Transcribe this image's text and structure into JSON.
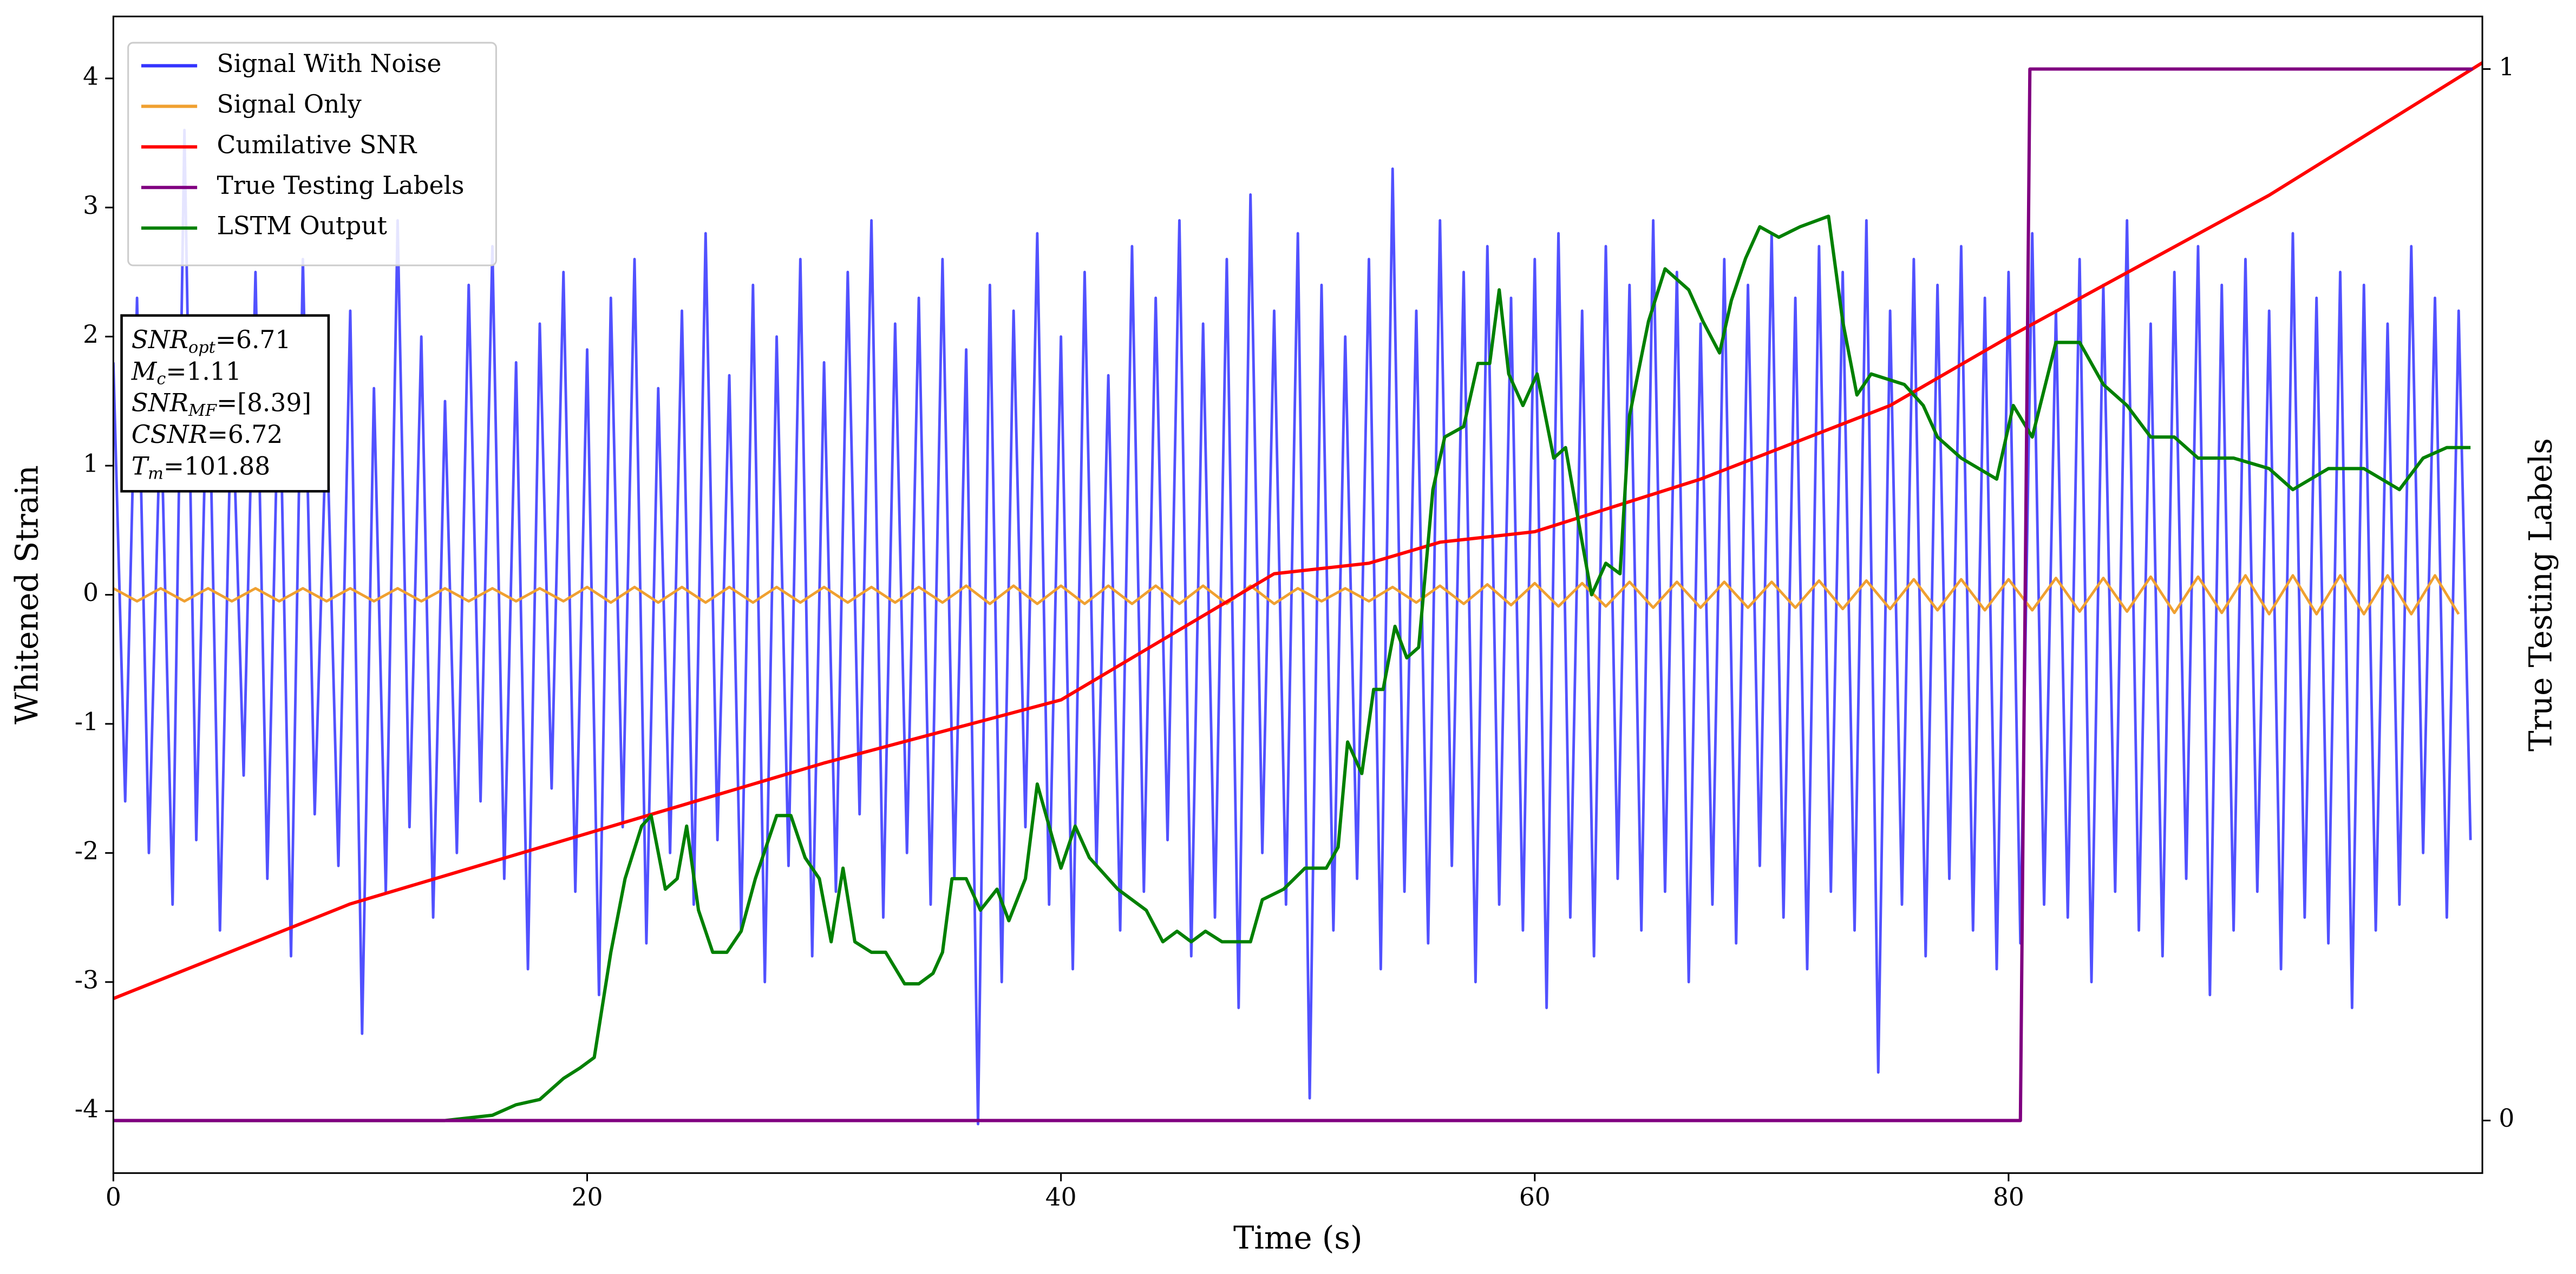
{
  "chart_data": {
    "type": "line",
    "xlabel": "Time (s)",
    "ylabel": "Whitened Strain",
    "y2label": "True Testing Labels",
    "xlim": [
      0,
      100
    ],
    "xticks": [
      0,
      20,
      40,
      60,
      80
    ],
    "ylim": [
      -4.48,
      4.48
    ],
    "yticks": [
      -4,
      -3,
      -2,
      -1,
      0,
      1,
      2,
      3,
      4
    ],
    "y2lim": [
      -0.05,
      1.05
    ],
    "y2ticks": [
      0,
      1
    ],
    "grid": false,
    "legend": "upper left",
    "annotation": [
      {
        "var": "SNR",
        "sub": "opt",
        "text": "=6.71"
      },
      {
        "var": "M",
        "sub": "c",
        "text": "=1.11"
      },
      {
        "var": "SNR",
        "sub": "MF",
        "text": "=[8.39]"
      },
      {
        "var": "CSNR",
        "sub": null,
        "text": "=6.72"
      },
      {
        "var": "T",
        "sub": "m",
        "text": "=101.88"
      }
    ],
    "series": [
      {
        "name": "Signal With Noise",
        "color": "#3333ff",
        "axis": "y",
        "x": [
          0,
          0.5,
          1,
          1.5,
          2,
          2.5,
          3,
          3.5,
          4,
          4.5,
          5,
          5.5,
          6,
          6.5,
          7,
          7.5,
          8,
          8.5,
          9,
          9.5,
          10,
          10.5,
          11,
          11.5,
          12,
          12.5,
          13,
          13.5,
          14,
          14.5,
          15,
          15.5,
          16,
          16.5,
          17,
          17.5,
          18,
          18.5,
          19,
          19.5,
          20,
          20.5,
          21,
          21.5,
          22,
          22.5,
          23,
          23.5,
          24,
          24.5,
          25,
          25.5,
          26,
          26.5,
          27,
          27.5,
          28,
          28.5,
          29,
          29.5,
          30,
          30.5,
          31,
          31.5,
          32,
          32.5,
          33,
          33.5,
          34,
          34.5,
          35,
          35.5,
          36,
          36.5,
          37,
          37.5,
          38,
          38.5,
          39,
          39.5,
          40,
          40.5,
          41,
          41.5,
          42,
          42.5,
          43,
          43.5,
          44,
          44.5,
          45,
          45.5,
          46,
          46.5,
          47,
          47.5,
          48,
          48.5,
          49,
          49.5,
          50,
          50.5,
          51,
          51.5,
          52,
          52.5,
          53,
          53.5,
          54,
          54.5,
          55,
          55.5,
          56,
          56.5,
          57,
          57.5,
          58,
          58.5,
          59,
          59.5,
          60,
          60.5,
          61,
          61.5,
          62,
          62.5,
          63,
          63.5,
          64,
          64.5,
          65,
          65.5,
          66,
          66.5,
          67,
          67.5,
          68,
          68.5,
          69,
          69.5,
          70,
          70.5,
          71,
          71.5,
          72,
          72.5,
          73,
          73.5,
          74,
          74.5,
          75,
          75.5,
          76,
          76.5,
          77,
          77.5,
          78,
          78.5,
          79,
          79.5,
          80,
          80.5,
          81,
          81.5,
          82,
          82.5,
          83,
          83.5,
          84,
          84.5,
          85,
          85.5,
          86,
          86.5,
          87,
          87.5,
          88,
          88.5,
          89,
          89.5,
          90,
          90.5,
          91,
          91.5,
          92,
          92.5,
          93,
          93.5,
          94,
          94.5,
          95,
          95.5,
          96,
          96.5,
          97,
          97.5,
          98,
          98.5,
          99,
          99.5
        ],
        "values": [
          1.8,
          -1.6,
          2.3,
          -2.0,
          1.5,
          -2.4,
          3.6,
          -1.9,
          2.1,
          -2.6,
          1.7,
          -1.4,
          2.5,
          -2.2,
          1.9,
          -2.8,
          2.6,
          -1.7,
          1.4,
          -2.1,
          2.2,
          -3.4,
          1.6,
          -2.3,
          2.9,
          -1.8,
          2.0,
          -2.5,
          1.5,
          -2.0,
          2.4,
          -1.6,
          2.7,
          -2.2,
          1.8,
          -2.9,
          2.1,
          -1.5,
          2.5,
          -2.3,
          1.9,
          -3.1,
          2.3,
          -1.8,
          2.6,
          -2.7,
          1.6,
          -2.0,
          2.2,
          -2.4,
          2.8,
          -1.9,
          1.7,
          -2.6,
          2.4,
          -3.0,
          2.0,
          -2.1,
          2.6,
          -2.8,
          1.8,
          -2.3,
          2.5,
          -1.7,
          2.9,
          -2.5,
          2.1,
          -2.0,
          2.3,
          -2.4,
          2.6,
          -2.2,
          1.9,
          -4.1,
          2.4,
          -3.0,
          2.2,
          -1.8,
          2.8,
          -2.4,
          2.0,
          -2.9,
          2.5,
          -2.1,
          1.7,
          -2.6,
          2.7,
          -2.3,
          2.3,
          -1.9,
          2.9,
          -2.8,
          2.1,
          -2.5,
          2.6,
          -3.2,
          3.1,
          -2.0,
          2.2,
          -2.4,
          2.8,
          -3.9,
          2.4,
          -2.6,
          2.0,
          -2.2,
          2.6,
          -2.9,
          3.3,
          -2.3,
          2.2,
          -2.7,
          2.9,
          -2.1,
          2.5,
          -3.0,
          2.7,
          -2.4,
          2.3,
          -2.6,
          2.6,
          -3.2,
          2.8,
          -2.5,
          2.2,
          -2.8,
          2.7,
          -2.2,
          2.4,
          -2.6,
          2.9,
          -2.3,
          2.5,
          -3.0,
          2.1,
          -2.4,
          2.6,
          -2.7,
          2.4,
          -2.1,
          2.8,
          -2.5,
          2.3,
          -2.9,
          2.7,
          -2.3,
          2.5,
          -2.6,
          2.9,
          -3.7,
          2.2,
          -2.4,
          2.6,
          -2.8,
          2.4,
          -2.2,
          2.7,
          -2.6,
          2.3,
          -2.9,
          2.5,
          -2.7,
          2.8,
          -2.4,
          2.2,
          -2.5,
          2.6,
          -3.0,
          2.4,
          -2.3,
          2.9,
          -2.6,
          2.1,
          -2.8,
          2.5,
          -2.2,
          2.7,
          -3.1,
          2.4,
          -2.6,
          2.6,
          -2.3,
          2.2,
          -2.9,
          2.8,
          -2.5,
          2.3,
          -2.7,
          2.5,
          -3.2,
          2.4,
          -2.6,
          2.1,
          -2.4,
          2.7,
          -2.0,
          2.3,
          -2.5,
          2.2,
          -1.9
        ]
      },
      {
        "name": "Signal Only",
        "color": "#f0a030",
        "axis": "y",
        "x": [
          0,
          1,
          2,
          3,
          4,
          5,
          6,
          7,
          8,
          9,
          10,
          11,
          12,
          13,
          14,
          15,
          16,
          17,
          18,
          19,
          20,
          21,
          22,
          23,
          24,
          25,
          26,
          27,
          28,
          29,
          30,
          31,
          32,
          33,
          34,
          35,
          36,
          37,
          38,
          39,
          40,
          41,
          42,
          43,
          44,
          45,
          46,
          47,
          48,
          49,
          50,
          51,
          52,
          53,
          54,
          55,
          56,
          57,
          58,
          59,
          60,
          61,
          62,
          63,
          64,
          65,
          66,
          67,
          68,
          69,
          70,
          71,
          72,
          73,
          74,
          75,
          76,
          77,
          78,
          79,
          80,
          81,
          82,
          83,
          84,
          85,
          86,
          87,
          88,
          89,
          90,
          91,
          92,
          93,
          94,
          95,
          96,
          97,
          98,
          99
        ],
        "values": [
          0.05,
          -0.05,
          0.05,
          -0.05,
          0.05,
          -0.05,
          0.05,
          -0.05,
          0.05,
          -0.05,
          0.05,
          -0.05,
          0.05,
          -0.05,
          0.05,
          -0.05,
          0.05,
          -0.05,
          0.05,
          -0.05,
          0.06,
          -0.06,
          0.06,
          -0.06,
          0.06,
          -0.06,
          0.06,
          -0.06,
          0.06,
          -0.06,
          0.06,
          -0.06,
          0.06,
          -0.06,
          0.06,
          -0.06,
          0.07,
          -0.07,
          0.07,
          -0.07,
          0.07,
          -0.07,
          0.07,
          -0.07,
          0.07,
          -0.07,
          0.07,
          -0.07,
          0.07,
          -0.07,
          0.05,
          -0.05,
          0.05,
          -0.05,
          0.06,
          -0.06,
          0.07,
          -0.07,
          0.08,
          -0.08,
          0.09,
          -0.09,
          0.09,
          -0.09,
          0.1,
          -0.1,
          0.1,
          -0.1,
          0.1,
          -0.1,
          0.1,
          -0.1,
          0.11,
          -0.11,
          0.11,
          -0.11,
          0.12,
          -0.12,
          0.12,
          -0.12,
          0.12,
          -0.12,
          0.13,
          -0.13,
          0.13,
          -0.13,
          0.14,
          -0.14,
          0.14,
          -0.14,
          0.15,
          -0.15,
          0.15,
          -0.15,
          0.15,
          -0.15,
          0.15,
          -0.15,
          0.15,
          -0.15
        ]
      },
      {
        "name": "Cumilative SNR",
        "color": "#ff0000",
        "axis": "y2",
        "x": [
          0,
          10,
          20,
          30,
          40,
          49,
          53,
          56,
          60,
          67,
          75,
          80,
          91,
          100
        ],
        "values": [
          0.116,
          0.206,
          0.273,
          0.34,
          0.4,
          0.52,
          0.53,
          0.55,
          0.56,
          0.61,
          0.68,
          0.745,
          0.88,
          1.006
        ]
      },
      {
        "name": "True Testing Labels",
        "color": "#800080",
        "axis": "y2",
        "x": [
          0,
          80.5,
          80.9,
          99.6
        ],
        "values": [
          0,
          0,
          1,
          1
        ]
      },
      {
        "name": "LSTM Output",
        "color": "#008000",
        "axis": "y2",
        "x": [
          0,
          14,
          16,
          17,
          18,
          19,
          19.7,
          20.3,
          21,
          21.6,
          22.3,
          22.7,
          23.3,
          23.8,
          24.2,
          24.7,
          25.3,
          25.9,
          26.5,
          27.1,
          28,
          28.6,
          29.2,
          29.8,
          30.3,
          30.8,
          31.3,
          32,
          32.6,
          33.4,
          34,
          34.6,
          35,
          35.4,
          36,
          36.6,
          37.3,
          37.8,
          38.5,
          39,
          39.5,
          40,
          40.6,
          41.2,
          42.4,
          43.6,
          44.3,
          44.9,
          45.5,
          46.1,
          46.8,
          48,
          48.5,
          49.4,
          50.3,
          51.2,
          51.7,
          52.1,
          52.7,
          53.2,
          53.6,
          54.1,
          54.6,
          55.1,
          55.7,
          56.2,
          57,
          57.6,
          58.1,
          58.5,
          58.9,
          59.5,
          60.1,
          60.8,
          61.3,
          62,
          62.4,
          63,
          63.6,
          64,
          64.8,
          65.5,
          66.5,
          67.1,
          67.8,
          68.3,
          68.9,
          69.5,
          70.3,
          71.2,
          72.4,
          73,
          73.6,
          74.2,
          75.6,
          76.4,
          77,
          78,
          79.5,
          80.2,
          81,
          82,
          83,
          84,
          85,
          86,
          87,
          88,
          89.5,
          91,
          92,
          93.5,
          95,
          96.5,
          97.5,
          98.5,
          99.5
        ],
        "values": [
          0,
          0,
          0.005,
          0.015,
          0.02,
          0.04,
          0.05,
          0.06,
          0.16,
          0.23,
          0.28,
          0.29,
          0.22,
          0.23,
          0.28,
          0.2,
          0.16,
          0.16,
          0.18,
          0.23,
          0.29,
          0.29,
          0.25,
          0.23,
          0.17,
          0.24,
          0.17,
          0.16,
          0.16,
          0.13,
          0.13,
          0.14,
          0.16,
          0.23,
          0.23,
          0.2,
          0.22,
          0.19,
          0.23,
          0.32,
          0.28,
          0.24,
          0.28,
          0.25,
          0.22,
          0.2,
          0.17,
          0.18,
          0.17,
          0.18,
          0.17,
          0.17,
          0.21,
          0.22,
          0.24,
          0.24,
          0.26,
          0.36,
          0.33,
          0.41,
          0.41,
          0.47,
          0.44,
          0.45,
          0.6,
          0.65,
          0.66,
          0.72,
          0.72,
          0.79,
          0.71,
          0.68,
          0.71,
          0.63,
          0.64,
          0.55,
          0.5,
          0.53,
          0.52,
          0.67,
          0.76,
          0.81,
          0.79,
          0.76,
          0.73,
          0.78,
          0.82,
          0.85,
          0.84,
          0.85,
          0.86,
          0.76,
          0.69,
          0.71,
          0.7,
          0.68,
          0.65,
          0.63,
          0.61,
          0.68,
          0.65,
          0.74,
          0.74,
          0.7,
          0.68,
          0.65,
          0.65,
          0.63,
          0.63,
          0.62,
          0.6,
          0.62,
          0.62,
          0.6,
          0.63,
          0.64,
          0.64
        ]
      }
    ]
  }
}
